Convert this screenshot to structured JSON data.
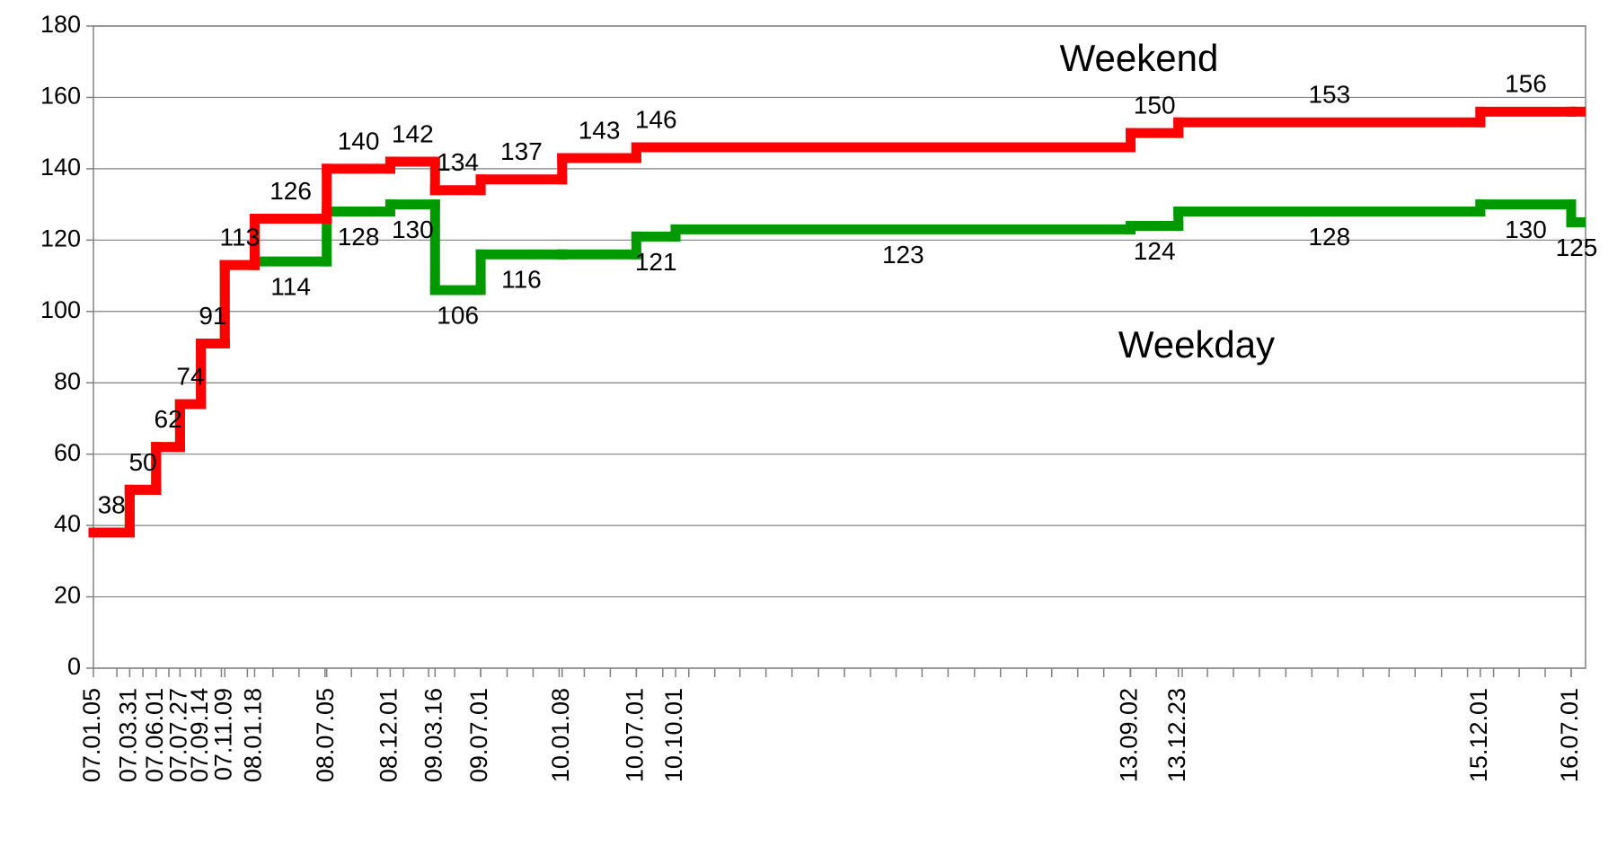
{
  "chart_data": {
    "type": "step",
    "x": [
      "07.01.05",
      "07.03.31",
      "07.06.01",
      "07.07.27",
      "07.09.14",
      "07.11.09",
      "08.01.18",
      "08.07.05",
      "08.12.01",
      "09.03.16",
      "09.07.01",
      "10.01.08",
      "10.07.01",
      "10.10.01",
      "13.09.02",
      "13.12.23",
      "15.12.01",
      "16.07.01"
    ],
    "series": [
      {
        "name": "Weekday",
        "color": "#009900",
        "values": [
          38,
          50,
          62,
          74,
          91,
          113,
          114,
          128,
          130,
          106,
          116,
          116,
          121,
          123,
          124,
          128,
          130,
          125
        ],
        "value_labels": [
          null,
          null,
          null,
          null,
          null,
          null,
          "114",
          "128",
          "130",
          "106",
          "116",
          null,
          "121",
          "123",
          "124",
          "128",
          "130",
          "125"
        ]
      },
      {
        "name": "Weekend",
        "color": "#ff0000",
        "values": [
          38,
          50,
          62,
          74,
          91,
          113,
          126,
          140,
          142,
          134,
          137,
          143,
          146,
          146,
          150,
          153,
          156,
          156
        ],
        "value_labels": [
          "38",
          "50",
          "62",
          "74",
          "91",
          "113",
          "126",
          "140",
          "142",
          "134",
          "137",
          "143",
          "146",
          null,
          "150",
          "153",
          "156",
          null
        ]
      }
    ],
    "ylim": [
      0,
      180
    ],
    "yticks": [
      0,
      20,
      40,
      60,
      80,
      100,
      120,
      140,
      160,
      180
    ],
    "grid": true
  }
}
